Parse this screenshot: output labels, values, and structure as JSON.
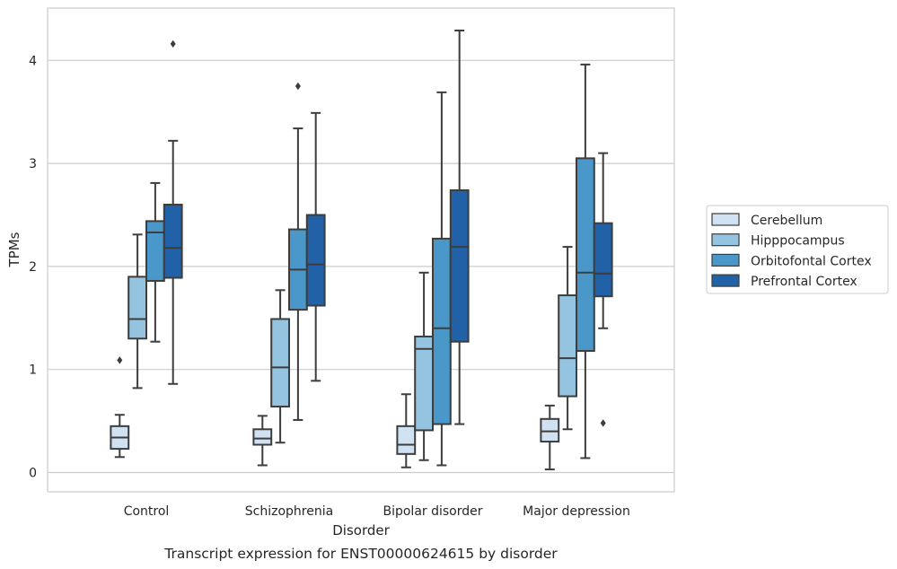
{
  "chart_data": {
    "type": "box",
    "title": "",
    "caption": "Transcript expression for ENST00000624615 by disorder",
    "xlabel": "Disorder",
    "ylabel": "TPMs",
    "ylim": [
      -0.18,
      4.5
    ],
    "yticks": [
      "0",
      "1",
      "2",
      "3",
      "4"
    ],
    "grid": "horizontal",
    "legend_position": "right",
    "categories": [
      "Control",
      "Schizophrenia",
      "Bipolar disorder",
      "Major depression"
    ],
    "series": [
      {
        "name": "Cerebellum",
        "color": "#d0e1f2",
        "boxes": [
          {
            "whislo": 0.15,
            "q1": 0.23,
            "med": 0.34,
            "q3": 0.45,
            "whishi": 0.56,
            "fliers": [
              1.09
            ]
          },
          {
            "whislo": 0.07,
            "q1": 0.27,
            "med": 0.33,
            "q3": 0.42,
            "whishi": 0.55,
            "fliers": []
          },
          {
            "whislo": 0.05,
            "q1": 0.18,
            "med": 0.27,
            "q3": 0.45,
            "whishi": 0.76,
            "fliers": []
          },
          {
            "whislo": 0.03,
            "q1": 0.3,
            "med": 0.4,
            "q3": 0.52,
            "whishi": 0.65,
            "fliers": []
          }
        ]
      },
      {
        "name": "Hipppocampus",
        "color": "#94c4df",
        "boxes": [
          {
            "whislo": 0.82,
            "q1": 1.3,
            "med": 1.49,
            "q3": 1.9,
            "whishi": 2.31,
            "fliers": []
          },
          {
            "whislo": 0.29,
            "q1": 0.64,
            "med": 1.02,
            "q3": 1.49,
            "whishi": 1.77,
            "fliers": []
          },
          {
            "whislo": 0.12,
            "q1": 0.41,
            "med": 1.2,
            "q3": 1.32,
            "whishi": 1.94,
            "fliers": []
          },
          {
            "whislo": 0.42,
            "q1": 0.74,
            "med": 1.11,
            "q3": 1.72,
            "whishi": 2.19,
            "fliers": []
          }
        ]
      },
      {
        "name": "Orbitofontal Cortex",
        "color": "#4a98c9",
        "boxes": [
          {
            "whislo": 1.27,
            "q1": 1.86,
            "med": 2.33,
            "q3": 2.44,
            "whishi": 2.81,
            "fliers": []
          },
          {
            "whislo": 0.51,
            "q1": 1.58,
            "med": 1.97,
            "q3": 2.36,
            "whishi": 3.34,
            "fliers": [
              3.75
            ]
          },
          {
            "whislo": 0.07,
            "q1": 0.47,
            "med": 1.4,
            "q3": 2.27,
            "whishi": 3.69,
            "fliers": []
          },
          {
            "whislo": 0.14,
            "q1": 1.18,
            "med": 1.94,
            "q3": 3.05,
            "whishi": 3.96,
            "fliers": []
          }
        ]
      },
      {
        "name": "Prefrontal Cortex",
        "color": "#2161a8",
        "boxes": [
          {
            "whislo": 0.86,
            "q1": 1.89,
            "med": 2.18,
            "q3": 2.6,
            "whishi": 3.22,
            "fliers": [
              4.16
            ]
          },
          {
            "whislo": 0.89,
            "q1": 1.62,
            "med": 2.02,
            "q3": 2.5,
            "whishi": 3.49,
            "fliers": []
          },
          {
            "whislo": 0.47,
            "q1": 1.27,
            "med": 2.19,
            "q3": 2.74,
            "whishi": 4.29,
            "fliers": []
          },
          {
            "whislo": 1.4,
            "q1": 1.71,
            "med": 1.93,
            "q3": 2.42,
            "whishi": 3.1,
            "fliers": [
              0.48
            ]
          }
        ]
      }
    ]
  }
}
